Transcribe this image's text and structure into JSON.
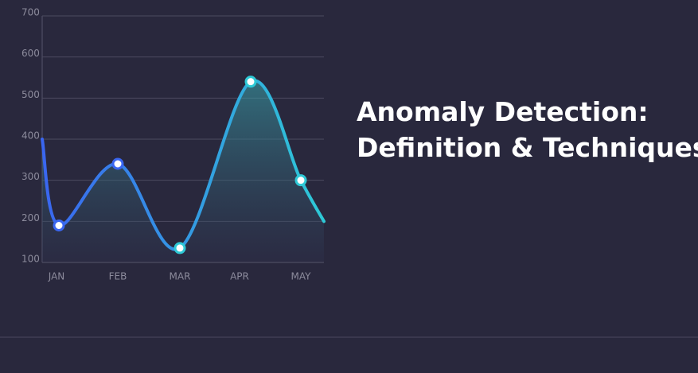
{
  "headline": {
    "lines": [
      "Anomaly Detection:",
      "Definition & Techniques"
    ]
  },
  "chart_data": {
    "type": "line",
    "categories": [
      null,
      "JAN",
      "FEB",
      "MAR",
      "APR",
      "MAY",
      null
    ],
    "values": [
      400,
      190,
      340,
      135,
      540,
      300,
      200
    ],
    "ylim": [
      100,
      700
    ],
    "yticks": [
      100,
      200,
      300,
      400,
      500,
      600,
      700
    ],
    "grid": true,
    "smooth": true,
    "area": true,
    "markers": true,
    "colors": [
      "#3a66f0",
      "#2ec9d6"
    ]
  }
}
